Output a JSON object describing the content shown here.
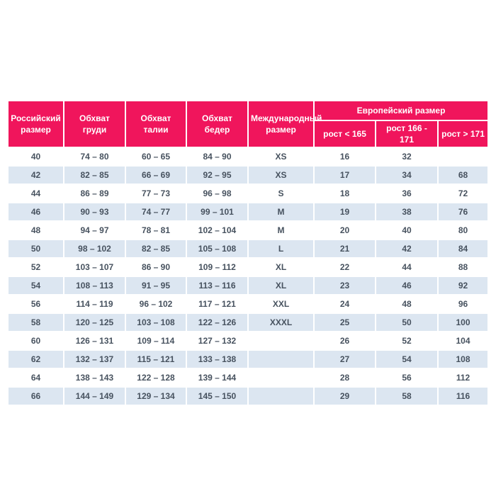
{
  "colors": {
    "header_bg": "#F0155C",
    "header_text": "#FFFFFF",
    "row_alt_bg": "#DCE6F1",
    "cell_text": "#47525F",
    "page_bg": "#FFFFFF"
  },
  "table": {
    "headers": {
      "russian_size": "Российский размер",
      "chest": "Обхват груди",
      "waist": "Обхват талии",
      "hips": "Обхват бедер",
      "international_size": "Международный размер",
      "european_size": "Европейский размер",
      "height_lt_165": "рост < 165",
      "height_166_171": "рост 166 - 171",
      "height_gt_171": "рост > 171"
    },
    "column_keys": [
      "russian-size",
      "chest",
      "waist",
      "hips",
      "international-size",
      "height-lt-165",
      "height-166-171",
      "height-gt-171"
    ],
    "rows": [
      [
        "40",
        "74 – 80",
        "60 – 65",
        "84 – 90",
        "XS",
        "16",
        "32",
        ""
      ],
      [
        "42",
        "82 – 85",
        "66 – 69",
        "92 – 95",
        "XS",
        "17",
        "34",
        "68"
      ],
      [
        "44",
        "86 – 89",
        "77 – 73",
        "96 – 98",
        "S",
        "18",
        "36",
        "72"
      ],
      [
        "46",
        "90 – 93",
        "74 – 77",
        "99 – 101",
        "M",
        "19",
        "38",
        "76"
      ],
      [
        "48",
        "94 – 97",
        "78 – 81",
        "102 – 104",
        "M",
        "20",
        "40",
        "80"
      ],
      [
        "50",
        "98 – 102",
        "82 – 85",
        "105 – 108",
        "L",
        "21",
        "42",
        "84"
      ],
      [
        "52",
        "103 – 107",
        "86 – 90",
        "109 – 112",
        "XL",
        "22",
        "44",
        "88"
      ],
      [
        "54",
        "108 – 113",
        "91 – 95",
        "113 – 116",
        "XL",
        "23",
        "46",
        "92"
      ],
      [
        "56",
        "114 – 119",
        "96 – 102",
        "117 – 121",
        "XXL",
        "24",
        "48",
        "96"
      ],
      [
        "58",
        "120 – 125",
        "103 – 108",
        "122 – 126",
        "XXXL",
        "25",
        "50",
        "100"
      ],
      [
        "60",
        "126 – 131",
        "109 – 114",
        "127 – 132",
        "",
        "26",
        "52",
        "104"
      ],
      [
        "62",
        "132 – 137",
        "115 – 121",
        "133 – 138",
        "",
        "27",
        "54",
        "108"
      ],
      [
        "64",
        "138 – 143",
        "122 – 128",
        "139 – 144",
        "",
        "28",
        "56",
        "112"
      ],
      [
        "66",
        "144 – 149",
        "129 – 134",
        "145 – 150",
        "",
        "29",
        "58",
        "116"
      ]
    ]
  }
}
